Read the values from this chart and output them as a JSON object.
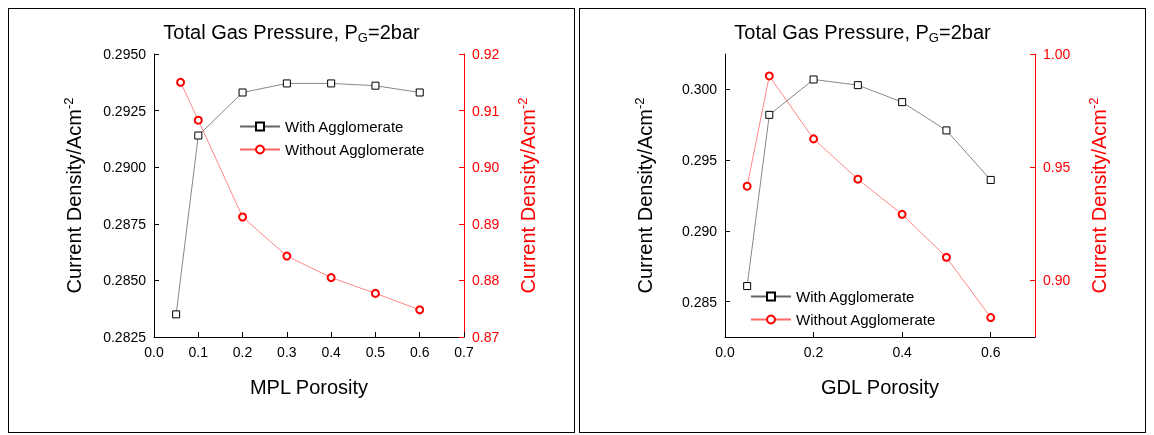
{
  "chart_data": [
    {
      "type": "line",
      "title": "Total Gas Pressure, P$_{G}$=2bar",
      "xlabel": "MPL Porosity",
      "ylabel": "Current Density/Acm$^{-2}$",
      "y2label": "Current Density/Acm$^{-2}$",
      "xlim": [
        0,
        0.7
      ],
      "xticks": [
        {
          "value": 0,
          "label": "0.0"
        },
        0.1,
        0.2,
        0.3,
        0.4,
        0.5,
        0.6,
        0.7
      ],
      "ylim": [
        0.2825,
        0.295
      ],
      "yticks": [
        {
          "value": 0.2825,
          "label": "0.2825"
        },
        {
          "value": 0.285,
          "label": "0.2850"
        },
        {
          "value": 0.2875,
          "label": "0.2875"
        },
        {
          "value": 0.29,
          "label": "0.2900"
        },
        {
          "value": 0.2925,
          "label": "0.2925"
        },
        {
          "value": 0.295,
          "label": "0.2950"
        }
      ],
      "y2lim": [
        0.87,
        0.92
      ],
      "y2ticks": [
        0.87,
        0.88,
        0.89,
        {
          "value": 0.9,
          "label": "0.90"
        },
        0.91,
        {
          "value": 0.92,
          "label": "0.92"
        }
      ],
      "legend": "top right",
      "grid": false,
      "series": [
        {
          "name": "With Agglomerate",
          "color": "#000000",
          "marker": "square",
          "x": [
            0.05,
            0.1,
            0.2,
            0.3,
            0.4,
            0.5,
            0.6
          ],
          "values": [
            0.2835,
            0.2914,
            0.2933,
            0.2937,
            0.2937,
            0.2936,
            0.2933
          ]
        },
        {
          "name": "Without Agglomerate",
          "color": "#ff0000",
          "marker": "circle",
          "axis": "y2",
          "x": [
            0.06,
            0.1,
            0.2,
            0.3,
            0.4,
            0.5,
            0.6
          ],
          "values": [
            0.915,
            0.9083,
            0.8912,
            0.8843,
            0.8805,
            0.8777,
            0.8748
          ]
        }
      ]
    },
    {
      "type": "line",
      "title": "Total Gas Pressure, P$_{G}$=2bar",
      "xlabel": "GDL Porosity",
      "ylabel": "Current Density/Acm$^{-2}$",
      "y2label": "Current Density/Acm$^{-2}$",
      "xlim": [
        0,
        0.7
      ],
      "xticks": [
        {
          "value": 0,
          "label": "0.0"
        },
        0.2,
        0.4,
        0.6
      ],
      "ylim": [
        0.2825,
        0.3025
      ],
      "yticks": [
        0.285,
        {
          "value": 0.29,
          "label": "0.290"
        },
        0.295,
        {
          "value": 0.3,
          "label": "0.300"
        }
      ],
      "y2lim": [
        0.875,
        1
      ],
      "y2ticks": [
        {
          "value": 0.9,
          "label": "0.90"
        },
        0.95,
        {
          "value": 1,
          "label": "1.00"
        }
      ],
      "legend": "bottom",
      "grid": false,
      "series": [
        {
          "name": "With Agglomerate",
          "color": "#000000",
          "marker": "square",
          "x": [
            0.05,
            0.1,
            0.2,
            0.3,
            0.4,
            0.5,
            0.6
          ],
          "values": [
            0.2861,
            0.2982,
            0.3007,
            0.3003,
            0.2991,
            0.2971,
            0.2936
          ]
        },
        {
          "name": "Without Agglomerate",
          "color": "#ff0000",
          "marker": "circle",
          "axis": "y2",
          "x": [
            0.05,
            0.1,
            0.2,
            0.3,
            0.4,
            0.5,
            0.6
          ],
          "values": [
            0.9416,
            0.9903,
            0.9625,
            0.9447,
            0.9292,
            0.9102,
            0.8836
          ]
        }
      ]
    }
  ]
}
